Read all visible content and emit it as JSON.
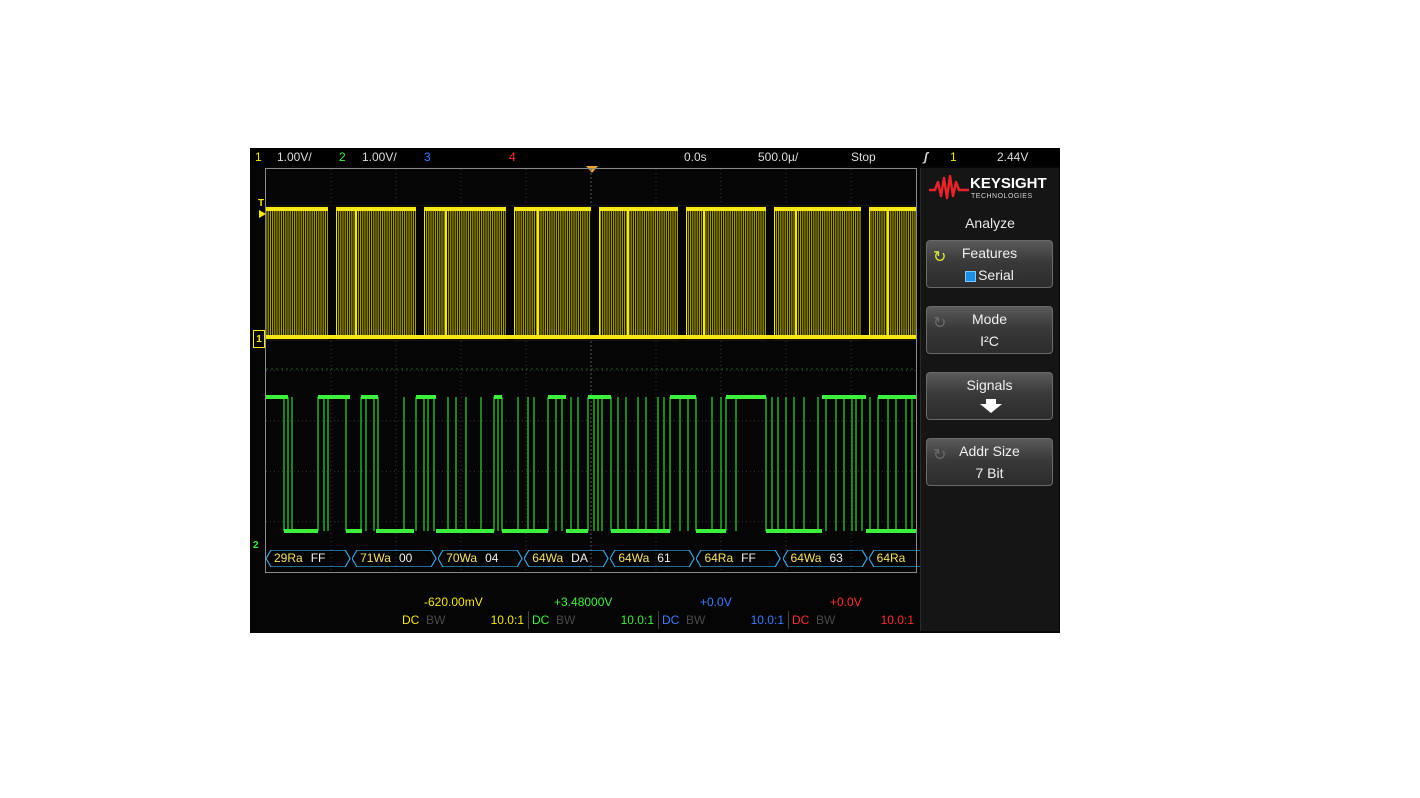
{
  "status": {
    "ch1_num": "1",
    "ch1_scale": "1.00V/",
    "ch2_num": "2",
    "ch2_scale": "1.00V/",
    "ch3_num": "3",
    "ch4_num": "4",
    "time_delay": "0.0s",
    "time_scale": "500.0µ/",
    "run_state": "Stop",
    "trigger_icon": "edge-trigger-icon",
    "trigger_source": "1",
    "trigger_level": "2.44V"
  },
  "markers": {
    "trigger": "T",
    "ch1": "1",
    "ch2": "2"
  },
  "decode_packets": [
    {
      "addr": "29Ra",
      "data": "FF"
    },
    {
      "addr": "71Wa",
      "data": "00"
    },
    {
      "addr": "70Wa",
      "data": "04"
    },
    {
      "addr": "64Wa",
      "data": "DA"
    },
    {
      "addr": "64Wa",
      "data": "61"
    },
    {
      "addr": "64Ra",
      "data": "FF"
    },
    {
      "addr": "64Wa",
      "data": "63"
    },
    {
      "addr": "64Ra",
      "data": ""
    }
  ],
  "channels": [
    {
      "offset": "-620.00mV",
      "coupling": "DC",
      "bw": "BW",
      "probe": "10.0:1",
      "color": "#f5e614"
    },
    {
      "offset": "+3.48000V",
      "coupling": "DC",
      "bw": "BW",
      "probe": "10.0:1",
      "color": "#3df03d"
    },
    {
      "offset": "+0.0V",
      "coupling": "DC",
      "bw": "BW",
      "probe": "10.0:1",
      "color": "#3b7cff"
    },
    {
      "offset": "+0.0V",
      "coupling": "DC",
      "bw": "BW",
      "probe": "10.0:1",
      "color": "#ff2d2d"
    }
  ],
  "panel": {
    "logo_text": "KEYSIGHT",
    "logo_sub": "TECHNOLOGIES",
    "menu_title": "Analyze",
    "softkeys": [
      {
        "label": "Features",
        "value": "Serial",
        "icon": "rotate-knob-icon"
      },
      {
        "label": "Mode",
        "value": "I²C",
        "icon": "rotate-knob-icon"
      },
      {
        "label": "Signals",
        "value": "",
        "icon": "down-arrow-icon"
      },
      {
        "label": "Addr Size",
        "value": "7 Bit",
        "icon": "rotate-knob-icon"
      }
    ]
  },
  "colors": {
    "ch1": "#f5e614",
    "ch2": "#3df03d",
    "ch3": "#3b7cff",
    "ch4": "#ff2d2d",
    "decode": "#3aa6e6",
    "logo": "#e8232a"
  }
}
